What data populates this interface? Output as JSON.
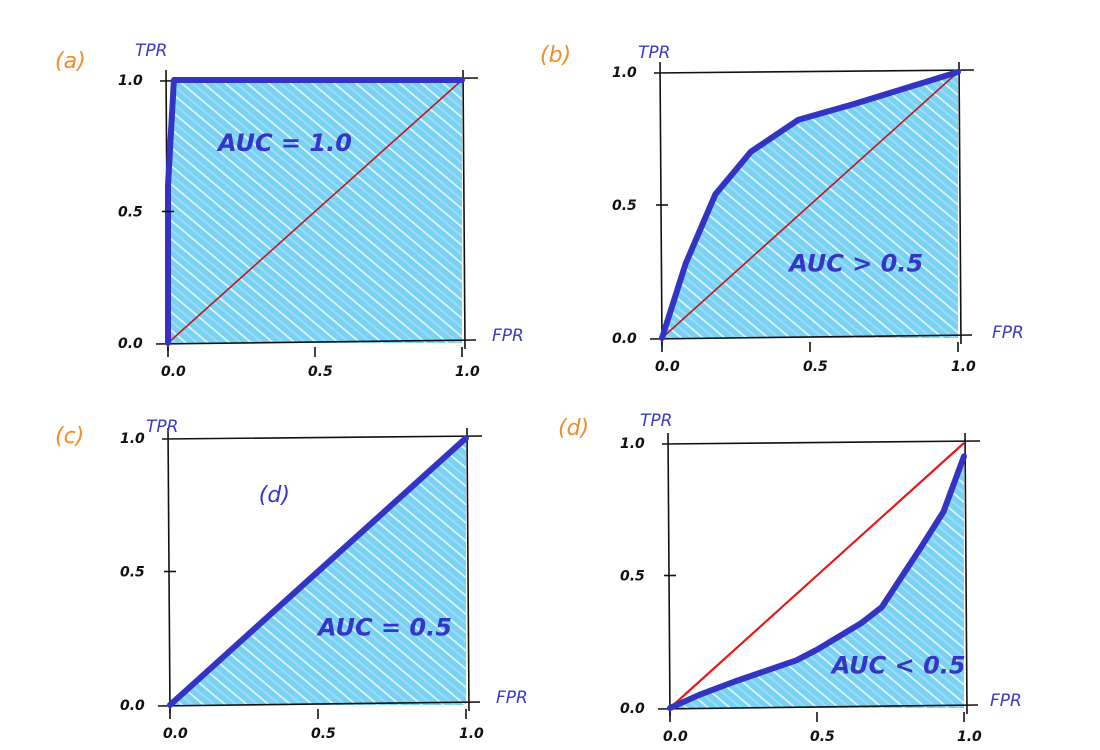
{
  "chart_data": [
    {
      "type": "area",
      "panel_label": "(a)",
      "xlabel": "FPR",
      "ylabel": "TPR",
      "x_ticks": [
        "0.0",
        "0.5",
        "1.0"
      ],
      "y_ticks": [
        "0.0",
        "0.5",
        "1.0"
      ],
      "xlim": [
        0,
        1
      ],
      "ylim": [
        0,
        1
      ],
      "series": [
        {
          "x": [
            0,
            0.0,
            0.02,
            1.0
          ],
          "y": [
            0,
            0.6,
            1.0,
            1.0
          ]
        }
      ],
      "shade": "under",
      "reference_line": "diagonal",
      "reference_color": "#c01818",
      "annotations": [
        {
          "text": "AUC = 1.0",
          "x": 0.17,
          "y": 0.73,
          "style": "auc"
        }
      ]
    },
    {
      "type": "area",
      "panel_label": "(b)",
      "xlabel": "FPR",
      "ylabel": "TPR",
      "x_ticks": [
        "0.0",
        "0.5",
        "1.0"
      ],
      "y_ticks": [
        "0.0",
        "0.5",
        "1.0"
      ],
      "xlim": [
        0,
        1
      ],
      "ylim": [
        0,
        1
      ],
      "series": [
        {
          "x": [
            0,
            0.08,
            0.18,
            0.3,
            0.46,
            0.65,
            1.0
          ],
          "y": [
            0,
            0.28,
            0.54,
            0.7,
            0.82,
            0.88,
            1.0
          ]
        }
      ],
      "shade": "under",
      "reference_line": "diagonal",
      "reference_color": "#c01818",
      "annotations": [
        {
          "text": "AUC > 0.5",
          "x": 0.43,
          "y": 0.25,
          "style": "auc"
        }
      ]
    },
    {
      "type": "area",
      "panel_label": "(c)",
      "xlabel": "FPR",
      "ylabel": "TPR",
      "x_ticks": [
        "0.0",
        "0.5",
        "1.0"
      ],
      "y_ticks": [
        "0.0",
        "0.5",
        "1.0"
      ],
      "xlim": [
        0,
        1
      ],
      "ylim": [
        0,
        1
      ],
      "series": [
        {
          "x": [
            0,
            0.1,
            0.3,
            0.5,
            0.7,
            1.0
          ],
          "y": [
            0,
            0.1,
            0.3,
            0.5,
            0.7,
            1.0
          ]
        }
      ],
      "shade": "under",
      "reference_line": "diagonal",
      "reference_color": "#c01818",
      "annotations": [
        {
          "text": "(d)",
          "x": 0.3,
          "y": 0.76,
          "style": "inner"
        },
        {
          "text": "AUC = 0.5",
          "x": 0.5,
          "y": 0.26,
          "style": "auc"
        }
      ]
    },
    {
      "type": "area",
      "panel_label": "(d)",
      "xlabel": "FPR",
      "ylabel": "TPR",
      "x_ticks": [
        "0.0",
        "0.5",
        "1.0"
      ],
      "y_ticks": [
        "0.0",
        "0.5",
        "1.0"
      ],
      "xlim": [
        0,
        1
      ],
      "ylim": [
        0,
        1
      ],
      "series": [
        {
          "x": [
            0,
            0.1,
            0.22,
            0.43,
            0.5,
            0.65,
            0.72,
            0.85,
            0.93,
            0.97,
            1.0
          ],
          "y": [
            0,
            0.05,
            0.1,
            0.18,
            0.22,
            0.32,
            0.38,
            0.6,
            0.74,
            0.86,
            0.95
          ]
        }
      ],
      "shade": "under",
      "reference_line": "diagonal",
      "reference_color": "#e81818",
      "annotations": [
        {
          "text": "AUC < 0.5",
          "x": 0.55,
          "y": 0.13,
          "style": "auc"
        }
      ]
    }
  ]
}
